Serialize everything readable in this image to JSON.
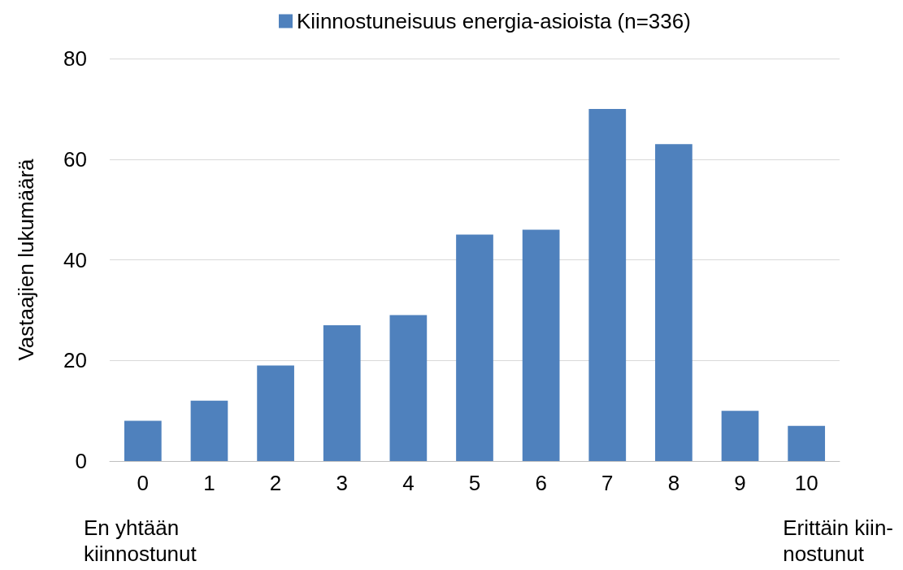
{
  "chart_data": {
    "type": "bar",
    "ylabel": "Vastaajien lukumäärä",
    "categories": [
      "0",
      "1",
      "2",
      "3",
      "4",
      "5",
      "6",
      "7",
      "8",
      "9",
      "10"
    ],
    "series": [
      {
        "name": "Kiinnostuneisuus energia-asioista (n=336)",
        "color": "#4f81bd",
        "values": [
          8,
          12,
          19,
          27,
          29,
          45,
          46,
          70,
          63,
          10,
          7
        ]
      }
    ],
    "ylim": [
      0,
      80
    ],
    "yticks": [
      0,
      20,
      40,
      60,
      80
    ],
    "grid": "y",
    "legend": "top",
    "annotations": [
      "En yhtään\nkiinnostunut",
      "Erittäin kiin-\nnostunut"
    ]
  }
}
